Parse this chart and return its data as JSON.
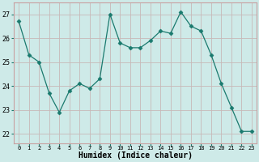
{
  "x": [
    0,
    1,
    2,
    3,
    4,
    5,
    6,
    7,
    8,
    9,
    10,
    11,
    12,
    13,
    14,
    15,
    16,
    17,
    18,
    19,
    20,
    21,
    22,
    23
  ],
  "y": [
    26.7,
    25.3,
    25.0,
    23.7,
    22.9,
    23.8,
    24.1,
    23.9,
    24.3,
    27.0,
    25.8,
    25.6,
    25.6,
    25.9,
    26.3,
    26.2,
    27.1,
    26.5,
    26.3,
    25.3,
    24.1,
    23.1,
    22.1,
    22.1
  ],
  "line_color": "#1a7a6e",
  "marker": "D",
  "marker_size": 2.5,
  "bg_color": "#ceeae8",
  "grid_color": "#b8d8d5",
  "grid_color_major": "#c8b8b8",
  "xlabel": "Humidex (Indice chaleur)",
  "ylabel_ticks": [
    22,
    23,
    24,
    25,
    26,
    27
  ],
  "xlim": [
    -0.5,
    23.5
  ],
  "ylim": [
    21.6,
    27.5
  ],
  "spine_color": "#c8a0a0",
  "tick_color": "#1a7a6e",
  "xlabel_fontsize": 7,
  "ytick_fontsize": 6,
  "xtick_fontsize": 5
}
